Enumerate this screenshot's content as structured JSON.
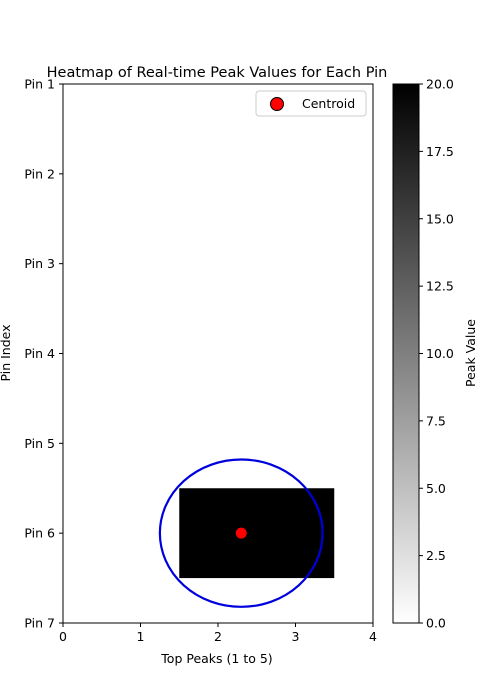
{
  "chart_data": {
    "type": "heatmap",
    "title": "Heatmap of Real-time Peak Values for Each Pin",
    "xlabel": "Top Peaks (1 to 5)",
    "ylabel": "Pin Index",
    "xlim": [
      0,
      4
    ],
    "ylim": [
      0,
      6
    ],
    "x_ticks": [
      0,
      1,
      2,
      3,
      4
    ],
    "x_tick_labels": [
      "0",
      "1",
      "2",
      "3",
      "4"
    ],
    "y_ticks": [
      0,
      1,
      2,
      3,
      4,
      5,
      6
    ],
    "y_tick_labels": [
      "Pin 1",
      "Pin 2",
      "Pin 3",
      "Pin 4",
      "Pin 5",
      "Pin 6",
      "Pin 7"
    ],
    "y_inverted": true,
    "cells": [
      {
        "x0": 1.5,
        "x1": 3.5,
        "y0": 4.5,
        "y1": 5.5,
        "value": 20
      }
    ],
    "colormap": {
      "name": "Greys",
      "low_color": "#ffffff",
      "high_color": "#000000"
    },
    "colorbar": {
      "label": "Peak Value",
      "range": [
        0,
        20
      ],
      "ticks": [
        0,
        2.5,
        5,
        7.5,
        10,
        12.5,
        15,
        17.5,
        20
      ],
      "tick_labels": [
        "0.0",
        "2.5",
        "5.0",
        "7.5",
        "10.0",
        "12.5",
        "15.0",
        "17.5",
        "20.0"
      ]
    },
    "centroid": {
      "x": 2.3,
      "y": 5.0,
      "color": "#ff0000",
      "edge_color": "#000000"
    },
    "circle": {
      "cx": 2.3,
      "cy": 5.0,
      "rx": 1.05,
      "ry": 0.82,
      "color": "#0000dd"
    },
    "legend": {
      "entries": [
        "Centroid"
      ],
      "placement": "upper right"
    },
    "grid": false
  }
}
